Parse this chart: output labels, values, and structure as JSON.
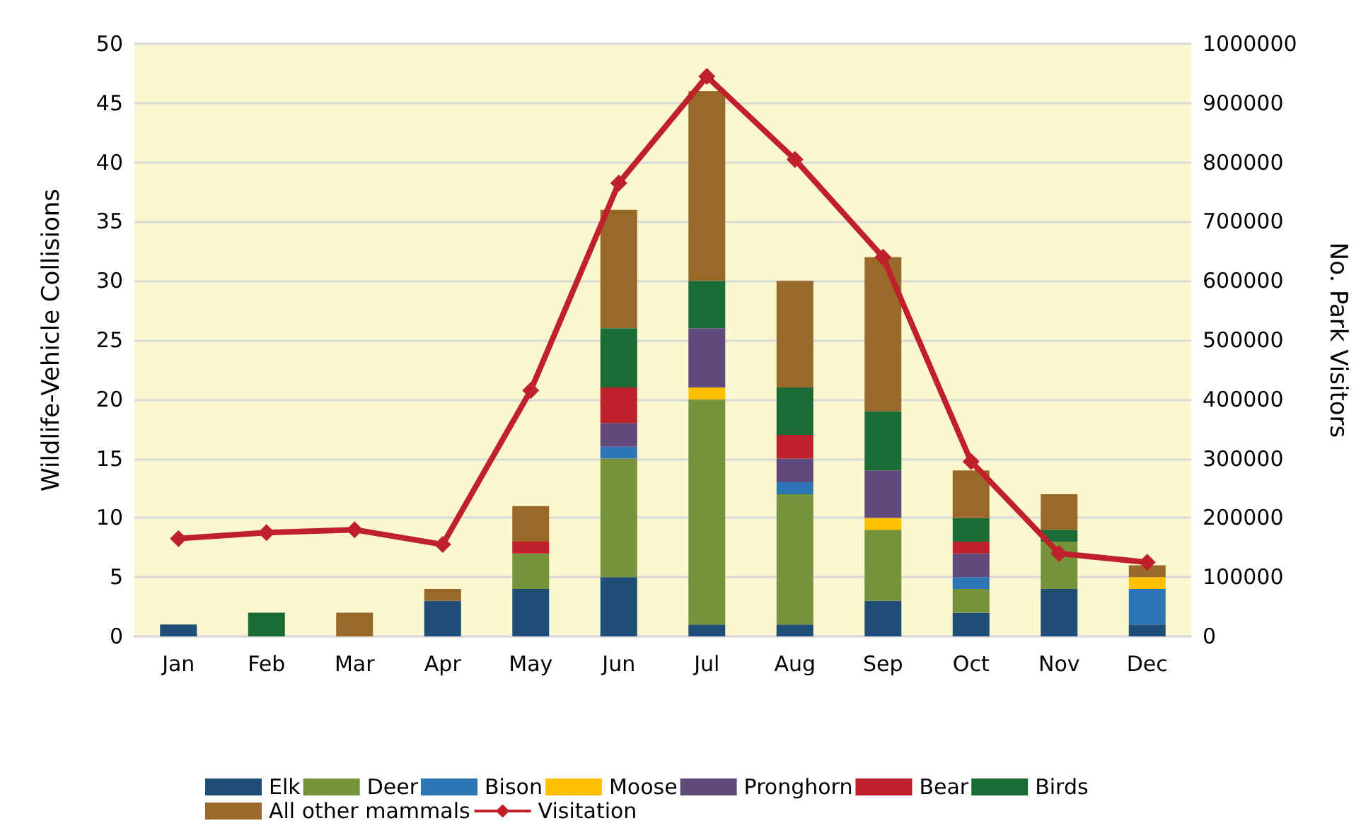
{
  "chart_data": {
    "type": "bar",
    "stacked": true,
    "ylabel": "Wildlife-Vehicle Collisions",
    "y2label": "No. Park Visitors",
    "categories": [
      "Jan",
      "Feb",
      "Mar",
      "Apr",
      "May",
      "Jun",
      "Jul",
      "Aug",
      "Sep",
      "Oct",
      "Nov",
      "Dec"
    ],
    "series": [
      {
        "name": "Elk",
        "color": "#1f4e79",
        "values": [
          1,
          0,
          0,
          3,
          4,
          5,
          1,
          1,
          3,
          2,
          4,
          1
        ]
      },
      {
        "name": "Deer",
        "color": "#77933c",
        "values": [
          0,
          0,
          0,
          0,
          3,
          10,
          19,
          11,
          6,
          2,
          4,
          0
        ]
      },
      {
        "name": "Bison",
        "color": "#2e75b6",
        "values": [
          0,
          0,
          0,
          0,
          0,
          1,
          0,
          1,
          0,
          1,
          0,
          3
        ]
      },
      {
        "name": "Moose",
        "color": "#ffc000",
        "values": [
          0,
          0,
          0,
          0,
          0,
          0,
          1,
          0,
          1,
          0,
          0,
          1
        ]
      },
      {
        "name": "Pronghorn",
        "color": "#604a7b",
        "values": [
          0,
          0,
          0,
          0,
          0,
          2,
          5,
          2,
          4,
          2,
          0,
          0
        ]
      },
      {
        "name": "Bear",
        "color": "#c0202a",
        "values": [
          0,
          0,
          0,
          0,
          1,
          3,
          0,
          2,
          0,
          1,
          0,
          0
        ]
      },
      {
        "name": "Birds",
        "color": "#1a6b36",
        "values": [
          0,
          2,
          0,
          0,
          0,
          5,
          4,
          4,
          5,
          2,
          1,
          0
        ]
      },
      {
        "name": "All other mammals",
        "color": "#99692a",
        "values": [
          0,
          0,
          2,
          1,
          3,
          10,
          16,
          9,
          13,
          4,
          3,
          1
        ]
      },
      {
        "name": "Visitation",
        "type": "line",
        "axis": "y2",
        "color": "#c0202a",
        "marker": "diamond",
        "values": [
          165000,
          175000,
          180000,
          155000,
          415000,
          765000,
          945000,
          805000,
          640000,
          295000,
          140000,
          125000
        ]
      }
    ],
    "ylim": [
      0,
      50
    ],
    "yticks": [
      0,
      5,
      10,
      15,
      20,
      25,
      30,
      35,
      40,
      45,
      50
    ],
    "y2lim": [
      0,
      1000000
    ],
    "y2ticks": [
      0,
      100000,
      200000,
      300000,
      400000,
      500000,
      600000,
      700000,
      800000,
      900000,
      1000000
    ],
    "grid": "y",
    "legend": "bottom"
  }
}
